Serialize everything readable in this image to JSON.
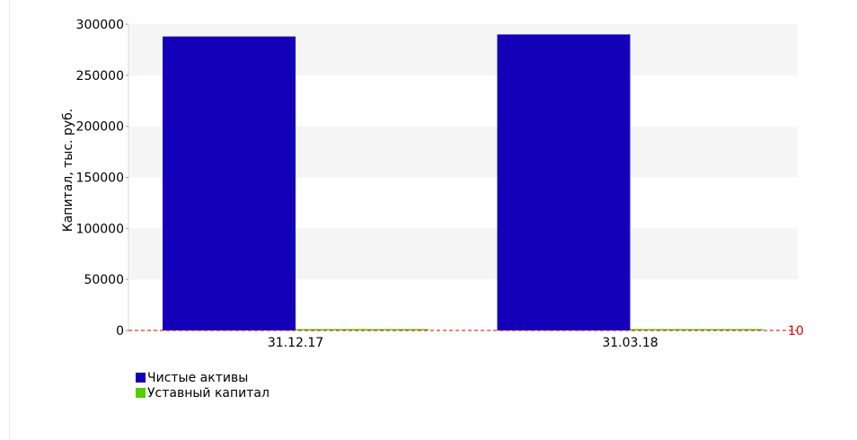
{
  "chart_data": {
    "type": "bar",
    "categories": [
      "31.12.17",
      "31.03.18"
    ],
    "series": [
      {
        "name": "Чистые активы",
        "values": [
          288000,
          290000
        ],
        "color": "#1300b8"
      },
      {
        "name": "Уставный капитал",
        "values": [
          10,
          10
        ],
        "color": "#55cc00"
      }
    ],
    "ylabel": "Капитал, тыс. руб.",
    "ylim": [
      0,
      300000
    ],
    "yticks": [
      "0",
      "50000",
      "100000",
      "150000",
      "200000",
      "250000",
      "300000"
    ],
    "reference_line": {
      "value": 10,
      "label": "10",
      "color": "#e00000"
    },
    "grid": "alternating horizontal bands",
    "legend_position": "bottom-left"
  }
}
